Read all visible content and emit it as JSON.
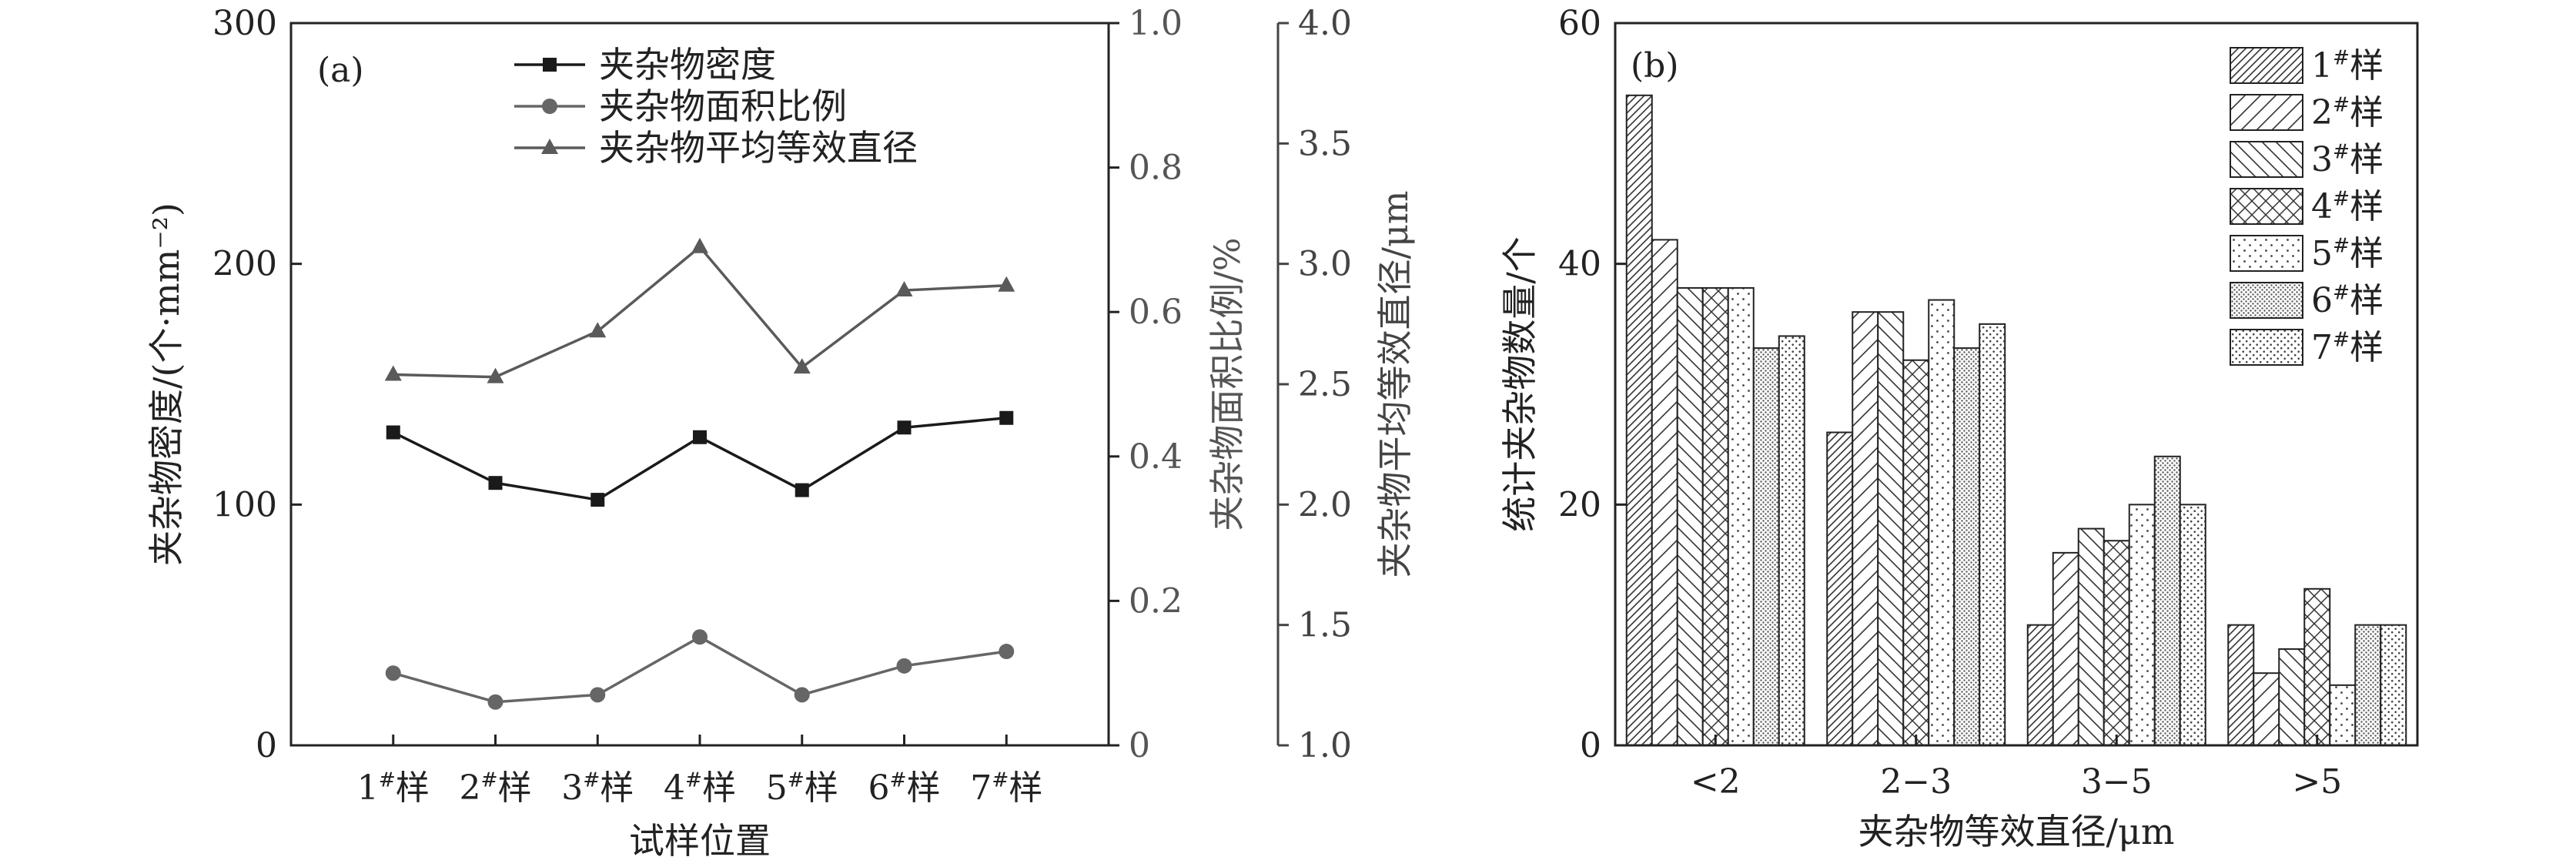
{
  "chart_data": [
    {
      "panel_label": "(a)",
      "type": "line",
      "categories": [
        "1#样",
        "2#样",
        "3#样",
        "4#样",
        "5#样",
        "6#样",
        "7#样"
      ],
      "category_labels": [
        {
          "base": "1",
          "sup": "#",
          "suffix": "样"
        },
        {
          "base": "2",
          "sup": "#",
          "suffix": "样"
        },
        {
          "base": "3",
          "sup": "#",
          "suffix": "样"
        },
        {
          "base": "4",
          "sup": "#",
          "suffix": "样"
        },
        {
          "base": "5",
          "sup": "#",
          "suffix": "样"
        },
        {
          "base": "6",
          "sup": "#",
          "suffix": "样"
        },
        {
          "base": "7",
          "sup": "#",
          "suffix": "样"
        }
      ],
      "xlabel": "试样位置",
      "axes": [
        {
          "id": "y1",
          "label": "夹杂物密度/(个·mm⁻²)",
          "range": [
            0,
            300
          ],
          "ticks": [
            0,
            100,
            200,
            300
          ],
          "tick_labels": [
            "0",
            "100",
            "200",
            "300"
          ],
          "color": "#1a1a1a"
        },
        {
          "id": "y2",
          "label": "夹杂物面积比例/%",
          "range": [
            0,
            1.0
          ],
          "ticks": [
            0,
            0.2,
            0.4,
            0.6,
            0.8,
            1.0
          ],
          "tick_labels": [
            "0",
            "0.2",
            "0.4",
            "0.6",
            "0.8",
            "1.0"
          ],
          "color": "#666666"
        },
        {
          "id": "y3",
          "label": "夹杂物平均等效直径/μm",
          "range": [
            1.0,
            4.0
          ],
          "ticks": [
            1.0,
            1.5,
            2.0,
            2.5,
            3.0,
            3.5,
            4.0
          ],
          "tick_labels": [
            "1.0",
            "1.5",
            "2.0",
            "2.5",
            "3.0",
            "3.5",
            "4.0"
          ],
          "color": "#333333"
        }
      ],
      "series": [
        {
          "name": "夹杂物密度",
          "axis": "y1",
          "marker": "square",
          "color": "#1a1a1a",
          "values": [
            130,
            109,
            102,
            128,
            106,
            132,
            136
          ]
        },
        {
          "name": "夹杂物面积比例",
          "axis": "y2",
          "marker": "circle",
          "color": "#666666",
          "values": [
            0.1,
            0.06,
            0.07,
            0.15,
            0.07,
            0.11,
            0.13
          ]
        },
        {
          "name": "夹杂物平均等效直径",
          "axis": "y3",
          "marker": "triangle",
          "color": "#5a5a5a",
          "values": [
            2.54,
            2.53,
            2.72,
            3.07,
            2.57,
            2.89,
            2.91
          ]
        }
      ],
      "legend_position": "top-center"
    },
    {
      "panel_label": "(b)",
      "type": "bar",
      "categories": [
        "<2",
        "2−3",
        "3−5",
        ">5"
      ],
      "xlabel": "夹杂物等效直径/μm",
      "ylabel": "统计夹杂物数量/个",
      "ylim": [
        0,
        60
      ],
      "yticks": [
        0,
        20,
        40,
        60
      ],
      "legend_position": "top-right",
      "series": [
        {
          "name": "1#样",
          "base": "1",
          "sup": "#",
          "suffix": "样",
          "pattern": "hatch-dense",
          "values": [
            54,
            26,
            10,
            10
          ]
        },
        {
          "name": "2#样",
          "base": "2",
          "sup": "#",
          "suffix": "样",
          "pattern": "hatch-fwd",
          "values": [
            42,
            36,
            16,
            6
          ]
        },
        {
          "name": "3#样",
          "base": "3",
          "sup": "#",
          "suffix": "样",
          "pattern": "hatch-back",
          "values": [
            38,
            36,
            18,
            8
          ]
        },
        {
          "name": "4#样",
          "base": "4",
          "sup": "#",
          "suffix": "样",
          "pattern": "cross",
          "values": [
            38,
            32,
            17,
            13
          ]
        },
        {
          "name": "5#样",
          "base": "5",
          "sup": "#",
          "suffix": "样",
          "pattern": "dots-sparse",
          "values": [
            38,
            37,
            20,
            5
          ]
        },
        {
          "name": "6#样",
          "base": "6",
          "sup": "#",
          "suffix": "样",
          "pattern": "dots-dense",
          "values": [
            33,
            33,
            24,
            10
          ]
        },
        {
          "name": "7#样",
          "base": "7",
          "sup": "#",
          "suffix": "样",
          "pattern": "dots-medium",
          "values": [
            34,
            35,
            20,
            10
          ]
        }
      ]
    }
  ]
}
